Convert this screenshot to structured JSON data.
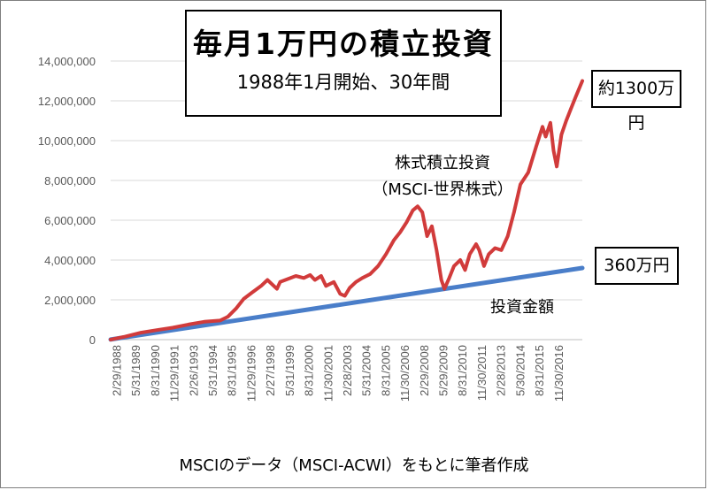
{
  "title_box": {
    "title": "毎月1万円の積立投資",
    "subtitle": "1988年1月開始、30年間"
  },
  "annotations": {
    "stock_callout": "約1300万円",
    "invested_callout": "360万円",
    "stock_label_line1": "株式積立投資",
    "stock_label_line2": "（MSCI-世界株式）",
    "invested_label": "投資金額"
  },
  "source": "MSCIのデータ（MSCI-ACWI）をもとに筆者作成",
  "colors": {
    "stock": "#d13b3b",
    "invested": "#4a7ec9",
    "grid": "#d9d9d9",
    "axis_text": "#595959"
  },
  "chart_data": {
    "type": "line",
    "title": "毎月1万円の積立投資",
    "subtitle": "1988年1月開始、30年間",
    "xlabel": "",
    "ylabel": "",
    "ylim": [
      0,
      14000000
    ],
    "yticks": [
      0,
      2000000,
      4000000,
      6000000,
      8000000,
      10000000,
      12000000,
      14000000
    ],
    "ytick_labels": [
      "0",
      "2,000,000",
      "4,000,000",
      "6,000,000",
      "8,000,000",
      "10,000,000",
      "12,000,000",
      "14,000,000"
    ],
    "xtick_labels": [
      "2/29/1988",
      "5/31/1989",
      "8/31/1990",
      "11/29/1991",
      "2/26/1993",
      "5/31/1994",
      "8/31/1995",
      "11/29/1996",
      "2/27/1998",
      "5/31/1999",
      "8/31/2000",
      "11/30/2001",
      "2/28/2003",
      "5/31/2004",
      "8/31/2005",
      "11/30/2006",
      "2/29/2008",
      "5/29/2009",
      "8/31/2010",
      "11/30/2011",
      "2/28/2013",
      "5/30/2014",
      "8/31/2015",
      "11/30/2016"
    ],
    "x_start": 1988.08,
    "x_end": 2017.92,
    "grid": true,
    "series": [
      {
        "name": "株式積立投資（MSCI-世界株式）",
        "x": [
          1988.08,
          1989.0,
          1990.0,
          1991.0,
          1992.0,
          1993.0,
          1994.0,
          1995.0,
          1995.5,
          1996.0,
          1996.5,
          1997.0,
          1997.6,
          1998.0,
          1998.6,
          1998.8,
          1999.3,
          1999.8,
          2000.3,
          2000.7,
          2001.0,
          2001.4,
          2001.7,
          2002.2,
          2002.6,
          2002.9,
          2003.2,
          2003.6,
          2004.0,
          2004.5,
          2005.0,
          2005.5,
          2006.0,
          2006.4,
          2006.8,
          2007.2,
          2007.5,
          2007.8,
          2008.1,
          2008.4,
          2008.7,
          2009.0,
          2009.2,
          2009.5,
          2009.8,
          2010.2,
          2010.5,
          2010.8,
          2011.2,
          2011.4,
          2011.7,
          2012.0,
          2012.4,
          2012.8,
          2013.2,
          2013.6,
          2014.0,
          2014.5,
          2015.0,
          2015.4,
          2015.6,
          2015.9,
          2016.1,
          2016.3,
          2016.6,
          2016.9,
          2017.2,
          2017.5,
          2017.92
        ],
        "values": [
          0,
          150000,
          350000,
          480000,
          600000,
          760000,
          900000,
          960000,
          1150000,
          1550000,
          2050000,
          2350000,
          2700000,
          3000000,
          2550000,
          2900000,
          3050000,
          3200000,
          3100000,
          3250000,
          3000000,
          3200000,
          2700000,
          2900000,
          2300000,
          2200000,
          2600000,
          2900000,
          3100000,
          3300000,
          3700000,
          4300000,
          5000000,
          5400000,
          5900000,
          6500000,
          6700000,
          6400000,
          5200000,
          5700000,
          4500000,
          3000000,
          2550000,
          3100000,
          3700000,
          4000000,
          3500000,
          4300000,
          4800000,
          4500000,
          3700000,
          4300000,
          4600000,
          4500000,
          5200000,
          6400000,
          7800000,
          8400000,
          9700000,
          10700000,
          10200000,
          10900000,
          9500000,
          8700000,
          10300000,
          11000000,
          11600000,
          12200000,
          13000000
        ]
      },
      {
        "name": "投資金額",
        "x": [
          1988.08,
          2017.92
        ],
        "values": [
          10000,
          3600000
        ]
      }
    ]
  }
}
